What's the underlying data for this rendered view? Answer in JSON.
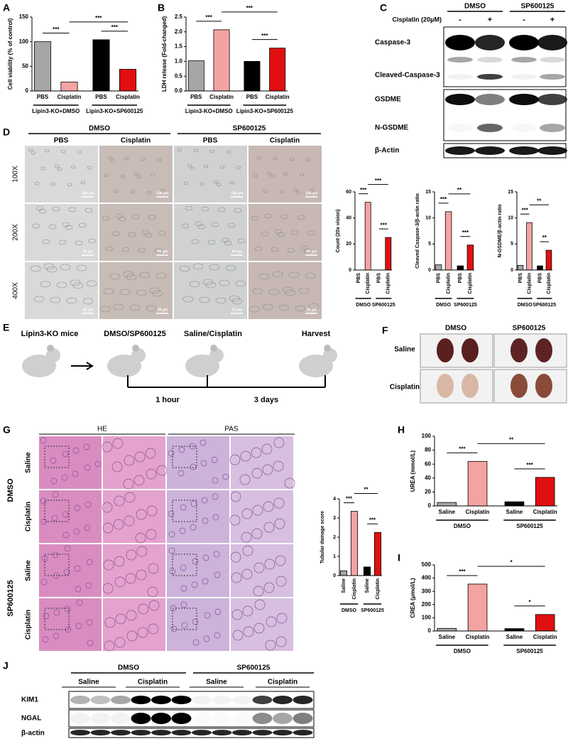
{
  "panel_labels": [
    "A",
    "B",
    "C",
    "D",
    "E",
    "F",
    "G",
    "H",
    "I",
    "J"
  ],
  "chart_data": [
    {
      "type": "bar",
      "ylabel": "Cell viability (% of control)",
      "categories": [
        "PBS",
        "Cisplatin",
        "PBS",
        "Cisplatin"
      ],
      "values": [
        100,
        18,
        104,
        44
      ],
      "colors": [
        "#a6a6a6",
        "#f4a3a3",
        "#000000",
        "#e01010"
      ],
      "groups": [
        "Lipin3-KO+DMSO",
        "Lipin3-KO+SP600125"
      ],
      "ylim": [
        0,
        150
      ],
      "yticks": [
        0,
        50,
        100,
        150
      ],
      "annotations": [
        "***",
        "***",
        "***"
      ]
    },
    {
      "type": "bar",
      "ylabel": "LDH release (Fold-changed)",
      "categories": [
        "PBS",
        "Cisplatin",
        "PBS",
        "Cisplatin"
      ],
      "values": [
        1.02,
        2.07,
        1.0,
        1.45
      ],
      "colors": [
        "#a6a6a6",
        "#f4a3a3",
        "#000000",
        "#e01010"
      ],
      "groups": [
        "Lipin3-KO+DMSO",
        "Lipin3-KO+SP600125"
      ],
      "ylim": [
        0,
        2.5
      ],
      "yticks": [
        {
          "value": 0,
          "label": "0.0"
        },
        0.5,
        {
          "value": 1,
          "label": "1.0"
        },
        1.5,
        {
          "value": 2,
          "label": "2.0"
        },
        2.5
      ],
      "annotations": [
        "***",
        "***",
        "***"
      ]
    },
    {
      "type": "bar",
      "ylabel": "Count (20x vision)",
      "categories": [
        "PBS",
        "Cisplatin",
        "PBS",
        "Cisplatin"
      ],
      "values": [
        0,
        52,
        0,
        25
      ],
      "colors": [
        "#a6a6a6",
        "#f4a3a3",
        "#000000",
        "#e01010"
      ],
      "groups": [
        "DMSO",
        "SP600125"
      ],
      "ylim": [
        0,
        60
      ],
      "yticks": [
        0,
        20,
        40,
        60
      ],
      "annotations": [
        "***",
        "***",
        "***"
      ]
    },
    {
      "type": "bar",
      "ylabel": "Cleaved Caspase-3/β-actin ratio",
      "categories": [
        "PBS",
        "Cisplatin",
        "PBS",
        "Cisplatin"
      ],
      "values": [
        1,
        11.2,
        0.8,
        4.8
      ],
      "colors": [
        "#a6a6a6",
        "#f4a3a3",
        "#000000",
        "#e01010"
      ],
      "groups": [
        "DMSO",
        "SP600125"
      ],
      "ylim": [
        0,
        15
      ],
      "yticks": [
        0,
        5,
        10,
        15
      ],
      "annotations": [
        "***",
        "**",
        "***"
      ]
    },
    {
      "type": "bar",
      "ylabel": "N-GSDME/β-actin ratio",
      "categories": [
        "PBS",
        "Cisplatin",
        "PBS",
        "Cisplatin"
      ],
      "values": [
        0.9,
        9.1,
        0.8,
        3.8
      ],
      "colors": [
        "#a6a6a6",
        "#f4a3a3",
        "#000000",
        "#e01010"
      ],
      "groups": [
        "DMSO",
        "SP600125"
      ],
      "ylim": [
        0,
        15
      ],
      "yticks": [
        0,
        5,
        10,
        15
      ],
      "annotations": [
        "***",
        "**",
        "**"
      ]
    },
    {
      "type": "bar",
      "ylabel": "Tubular damage score",
      "categories": [
        "Saline",
        "Cisplatin",
        "Saline",
        "Cisplatin"
      ],
      "values": [
        0.25,
        3.35,
        0.45,
        2.25
      ],
      "colors": [
        "#a6a6a6",
        "#f4a3a3",
        "#000000",
        "#e01010"
      ],
      "groups": [
        "DMSO",
        "SP600125"
      ],
      "ylim": [
        0,
        4
      ],
      "yticks": [
        0,
        1,
        2,
        3,
        4
      ],
      "annotations": [
        "***",
        "**",
        "***"
      ]
    },
    {
      "type": "bar",
      "ylabel": "UREA (mmol/L)",
      "categories": [
        "Saline",
        "Cisplatin",
        "Saline",
        "Cisplatin"
      ],
      "values": [
        5,
        64,
        6,
        41
      ],
      "colors": [
        "#a6a6a6",
        "#f4a3a3",
        "#000000",
        "#e01010"
      ],
      "groups": [
        "DMSO",
        "SP600125"
      ],
      "ylim": [
        0,
        100
      ],
      "yticks": [
        0,
        20,
        40,
        60,
        80,
        100
      ],
      "annotations": [
        "***",
        "**",
        "***"
      ]
    },
    {
      "type": "bar",
      "ylabel": "CREA (μmol/L)",
      "categories": [
        "Saline",
        "Cisplatin",
        "Saline",
        "Cisplatin"
      ],
      "values": [
        20,
        355,
        18,
        125
      ],
      "colors": [
        "#a6a6a6",
        "#f4a3a3",
        "#000000",
        "#e01010"
      ],
      "groups": [
        "DMSO",
        "SP600125"
      ],
      "ylim": [
        0,
        500
      ],
      "yticks": [
        0,
        100,
        200,
        300,
        400,
        500
      ],
      "annotations": [
        "***",
        "*",
        "*"
      ]
    }
  ],
  "panel_c": {
    "groups": [
      "DMSO",
      "SP600125"
    ],
    "treatment": "Cisplatin (20μM)",
    "lanes": [
      "-",
      "+",
      "-",
      "+"
    ],
    "bands": [
      "Caspase-3",
      "Cleaved-Caspase-3",
      "GSDME",
      "N-GSDME",
      "β-Actin"
    ]
  },
  "panel_d": {
    "groups": [
      "DMSO",
      "SP600125"
    ],
    "columns": [
      "PBS",
      "Cisplatin",
      "PBS",
      "Cisplatin"
    ],
    "rows": [
      "100X",
      "200X",
      "400X"
    ],
    "scale_bars": [
      "100 μm",
      "50 μm",
      "20 μm"
    ]
  },
  "panel_e": {
    "mice": "Lipin3-KO mice",
    "steps": [
      "DMSO/SP600125",
      "Saline/Cisplatin",
      "Harvest"
    ],
    "intervals": [
      "1 hour",
      "3 days"
    ]
  },
  "panel_f": {
    "columns": [
      "DMSO",
      "SP600125"
    ],
    "rows": [
      "Saline",
      "Cisplatin"
    ]
  },
  "panel_g": {
    "stains": [
      "HE",
      "PAS"
    ],
    "groups": [
      "DMSO",
      "SP600125"
    ],
    "rows": [
      "Saline",
      "Cisplatin",
      "Saline",
      "Cisplatin"
    ]
  },
  "panel_j": {
    "groups": [
      "DMSO",
      "SP600125"
    ],
    "conditions": [
      "Saline",
      "Cisplatin",
      "Saline",
      "Cisplatin"
    ],
    "bands": [
      "KIM1",
      "NGAL",
      "β-actin"
    ]
  }
}
